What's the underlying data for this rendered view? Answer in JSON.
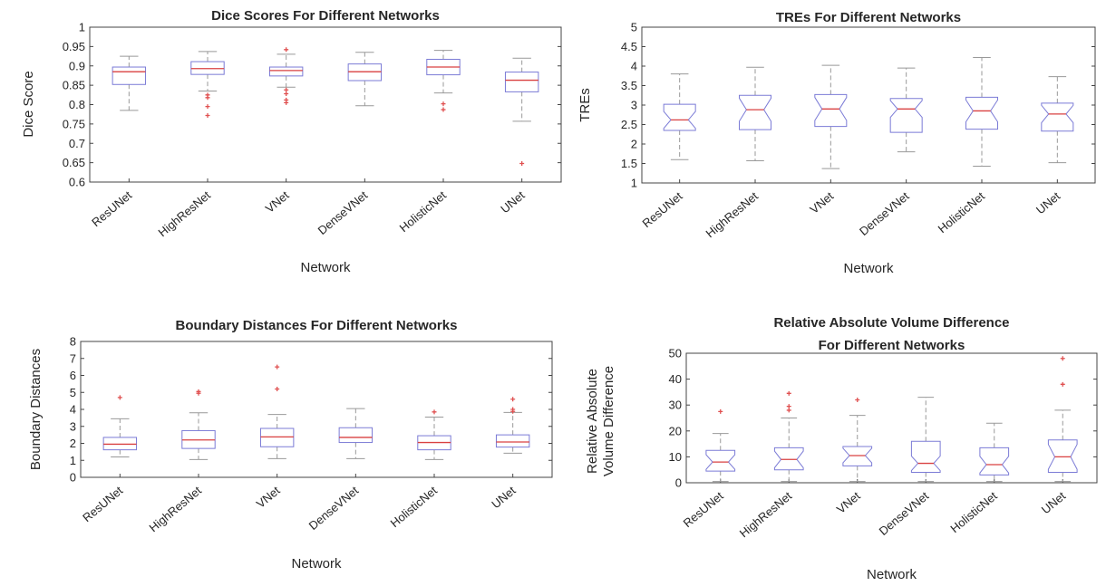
{
  "chart_data": [
    {
      "type": "box",
      "title": [
        "Dice Scores For Different Networks"
      ],
      "xlabel": "Network",
      "ylabel": [
        "Dice Score"
      ],
      "ylim": [
        0.6,
        1.0
      ],
      "yticks": [
        0.6,
        0.65,
        0.7,
        0.75,
        0.8,
        0.85,
        0.9,
        0.95,
        1
      ],
      "ytick_labels": [
        "0.6",
        "0.65",
        "0.7",
        "0.75",
        "0.8",
        "0.85",
        "0.9",
        "0.95",
        "1"
      ],
      "notched": false,
      "categories": [
        "ResUNet",
        "HighResNet",
        "VNet",
        "DenseVNet",
        "HolisticNet",
        "UNet"
      ],
      "boxes": [
        {
          "whisker_low": 0.785,
          "q1": 0.852,
          "median": 0.885,
          "q3": 0.897,
          "whisker_high": 0.925,
          "outliers": []
        },
        {
          "whisker_low": 0.835,
          "q1": 0.878,
          "median": 0.893,
          "q3": 0.911,
          "whisker_high": 0.937,
          "outliers": [
            0.825,
            0.818,
            0.795,
            0.772
          ]
        },
        {
          "whisker_low": 0.845,
          "q1": 0.874,
          "median": 0.888,
          "q3": 0.897,
          "whisker_high": 0.93,
          "outliers": [
            0.942,
            0.838,
            0.828,
            0.812,
            0.805
          ]
        },
        {
          "whisker_low": 0.797,
          "q1": 0.862,
          "median": 0.885,
          "q3": 0.905,
          "whisker_high": 0.935,
          "outliers": []
        },
        {
          "whisker_low": 0.83,
          "q1": 0.877,
          "median": 0.897,
          "q3": 0.917,
          "whisker_high": 0.94,
          "outliers": [
            0.802,
            0.787
          ]
        },
        {
          "whisker_low": 0.757,
          "q1": 0.833,
          "median": 0.863,
          "q3": 0.884,
          "whisker_high": 0.92,
          "outliers": [
            0.648
          ]
        }
      ],
      "box_color": "#7b7bd6",
      "median_color": "#d94040",
      "whisker_color": "#999999",
      "outlier_color": "#e05050"
    },
    {
      "type": "box",
      "title": [
        "TREs For Different Networks"
      ],
      "xlabel": "Network",
      "ylabel": [
        "TREs"
      ],
      "ylim": [
        1,
        5
      ],
      "yticks": [
        1,
        1.5,
        2,
        2.5,
        3,
        3.5,
        4,
        4.5,
        5
      ],
      "ytick_labels": [
        "1",
        "1.5",
        "2",
        "2.5",
        "3",
        "3.5",
        "4",
        "4.5",
        "5"
      ],
      "notched": true,
      "categories": [
        "ResUNet",
        "HighResNet",
        "VNet",
        "DenseVNet",
        "HolisticNet",
        "UNet"
      ],
      "boxes": [
        {
          "whisker_low": 1.6,
          "q1": 2.35,
          "median": 2.62,
          "q3": 3.02,
          "whisker_high": 3.8,
          "outliers": []
        },
        {
          "whisker_low": 1.57,
          "q1": 2.37,
          "median": 2.88,
          "q3": 3.25,
          "whisker_high": 3.97,
          "outliers": []
        },
        {
          "whisker_low": 1.37,
          "q1": 2.45,
          "median": 2.9,
          "q3": 3.27,
          "whisker_high": 4.02,
          "outliers": []
        },
        {
          "whisker_low": 1.8,
          "q1": 2.3,
          "median": 2.9,
          "q3": 3.17,
          "whisker_high": 3.95,
          "outliers": []
        },
        {
          "whisker_low": 1.43,
          "q1": 2.38,
          "median": 2.85,
          "q3": 3.2,
          "whisker_high": 4.22,
          "outliers": []
        },
        {
          "whisker_low": 1.52,
          "q1": 2.33,
          "median": 2.77,
          "q3": 3.05,
          "whisker_high": 3.73,
          "outliers": []
        }
      ],
      "box_color": "#7b7bd6",
      "median_color": "#d94040",
      "whisker_color": "#999999",
      "outlier_color": "#e05050"
    },
    {
      "type": "box",
      "title": [
        "Boundary Distances For Different Networks"
      ],
      "xlabel": "Network",
      "ylabel": [
        "Boundary Distances"
      ],
      "ylim": [
        0,
        8
      ],
      "yticks": [
        0,
        1,
        2,
        3,
        4,
        5,
        6,
        7,
        8
      ],
      "ytick_labels": [
        "0",
        "1",
        "2",
        "3",
        "4",
        "5",
        "6",
        "7",
        "8"
      ],
      "notched": false,
      "categories": [
        "ResUNet",
        "HighResNet",
        "VNet",
        "DenseVNet",
        "HolisticNet",
        "UNet"
      ],
      "boxes": [
        {
          "whisker_low": 1.2,
          "q1": 1.62,
          "median": 1.95,
          "q3": 2.35,
          "whisker_high": 3.45,
          "outliers": [
            4.7
          ]
        },
        {
          "whisker_low": 1.05,
          "q1": 1.7,
          "median": 2.2,
          "q3": 2.75,
          "whisker_high": 3.8,
          "outliers": [
            4.95,
            5.05
          ]
        },
        {
          "whisker_low": 1.1,
          "q1": 1.8,
          "median": 2.38,
          "q3": 2.88,
          "whisker_high": 3.7,
          "outliers": [
            5.2,
            6.5
          ]
        },
        {
          "whisker_low": 1.1,
          "q1": 2.05,
          "median": 2.35,
          "q3": 2.92,
          "whisker_high": 4.05,
          "outliers": []
        },
        {
          "whisker_low": 1.05,
          "q1": 1.62,
          "median": 2.05,
          "q3": 2.45,
          "whisker_high": 3.55,
          "outliers": [
            3.85
          ]
        },
        {
          "whisker_low": 1.42,
          "q1": 1.78,
          "median": 2.08,
          "q3": 2.5,
          "whisker_high": 3.82,
          "outliers": [
            3.88,
            4.0,
            4.6
          ]
        }
      ],
      "box_color": "#7b7bd6",
      "median_color": "#d94040",
      "whisker_color": "#999999",
      "outlier_color": "#e05050"
    },
    {
      "type": "box",
      "title": [
        "Relative Absolute Volume Difference",
        "For Different Networks"
      ],
      "xlabel": "Network",
      "ylabel": [
        "Relative Absolute",
        "Volume Difference"
      ],
      "ylim": [
        0,
        50
      ],
      "yticks": [
        0,
        10,
        20,
        30,
        40,
        50
      ],
      "ytick_labels": [
        "0",
        "10",
        "20",
        "30",
        "40",
        "50"
      ],
      "notched": true,
      "categories": [
        "ResUNet",
        "HighResNet",
        "VNet",
        "DenseVNet",
        "HolisticNet",
        "UNet"
      ],
      "boxes": [
        {
          "whisker_low": 0.5,
          "q1": 4.5,
          "median": 8,
          "q3": 12.5,
          "whisker_high": 19,
          "outliers": [
            27.5
          ]
        },
        {
          "whisker_low": 0.5,
          "q1": 5,
          "median": 9,
          "q3": 13.5,
          "whisker_high": 25,
          "outliers": [
            28,
            29.5,
            34.5
          ]
        },
        {
          "whisker_low": 0.5,
          "q1": 6.5,
          "median": 10.5,
          "q3": 14,
          "whisker_high": 26,
          "outliers": [
            32
          ]
        },
        {
          "whisker_low": 0.5,
          "q1": 4,
          "median": 7.5,
          "q3": 16,
          "whisker_high": 33,
          "outliers": []
        },
        {
          "whisker_low": 0.5,
          "q1": 3,
          "median": 7,
          "q3": 13.5,
          "whisker_high": 23,
          "outliers": []
        },
        {
          "whisker_low": 0.5,
          "q1": 4,
          "median": 10,
          "q3": 16.5,
          "whisker_high": 28,
          "outliers": [
            38,
            48
          ]
        }
      ],
      "box_color": "#7b7bd6",
      "median_color": "#d94040",
      "whisker_color": "#999999",
      "outlier_color": "#e05050"
    }
  ]
}
